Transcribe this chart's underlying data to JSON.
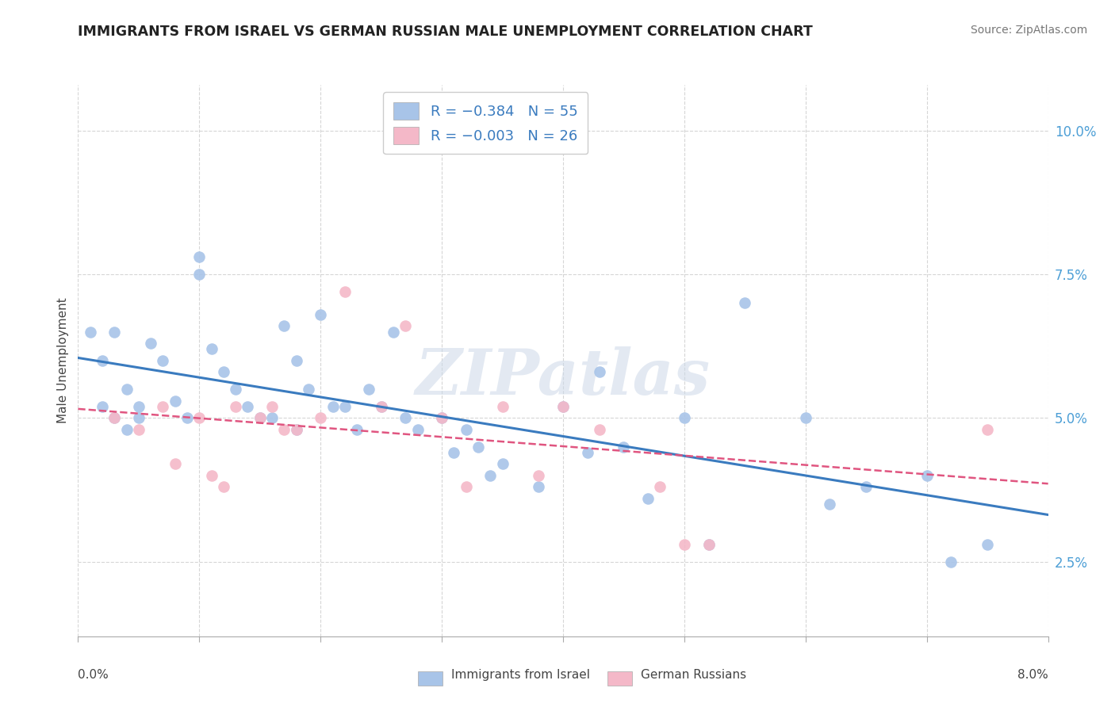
{
  "title": "IMMIGRANTS FROM ISRAEL VS GERMAN RUSSIAN MALE UNEMPLOYMENT CORRELATION CHART",
  "source": "Source: ZipAtlas.com",
  "ylabel": "Male Unemployment",
  "ytick_vals": [
    0.025,
    0.05,
    0.075,
    0.1
  ],
  "ytick_labels": [
    "2.5%",
    "5.0%",
    "7.5%",
    "10.0%"
  ],
  "xlim": [
    0.0,
    0.08
  ],
  "ylim": [
    0.012,
    0.108
  ],
  "color_israel": "#a8c4e8",
  "color_german": "#f4b8c8",
  "color_line_israel": "#3a7bbf",
  "color_line_german": "#e05580",
  "color_ytick": "#4d9fd6",
  "watermark": "ZIPatlas",
  "israel_x": [
    0.001,
    0.002,
    0.002,
    0.003,
    0.003,
    0.004,
    0.004,
    0.005,
    0.005,
    0.006,
    0.007,
    0.008,
    0.009,
    0.01,
    0.01,
    0.011,
    0.012,
    0.013,
    0.014,
    0.015,
    0.016,
    0.017,
    0.018,
    0.018,
    0.019,
    0.02,
    0.021,
    0.022,
    0.023,
    0.024,
    0.025,
    0.026,
    0.027,
    0.028,
    0.03,
    0.031,
    0.032,
    0.033,
    0.034,
    0.035,
    0.038,
    0.04,
    0.042,
    0.043,
    0.045,
    0.047,
    0.05,
    0.052,
    0.055,
    0.06,
    0.062,
    0.065,
    0.07,
    0.072,
    0.075
  ],
  "israel_y": [
    0.065,
    0.06,
    0.052,
    0.065,
    0.05,
    0.055,
    0.048,
    0.05,
    0.052,
    0.063,
    0.06,
    0.053,
    0.05,
    0.075,
    0.078,
    0.062,
    0.058,
    0.055,
    0.052,
    0.05,
    0.05,
    0.066,
    0.06,
    0.048,
    0.055,
    0.068,
    0.052,
    0.052,
    0.048,
    0.055,
    0.052,
    0.065,
    0.05,
    0.048,
    0.05,
    0.044,
    0.048,
    0.045,
    0.04,
    0.042,
    0.038,
    0.052,
    0.044,
    0.058,
    0.045,
    0.036,
    0.05,
    0.028,
    0.07,
    0.05,
    0.035,
    0.038,
    0.04,
    0.025,
    0.028
  ],
  "german_x": [
    0.003,
    0.005,
    0.007,
    0.008,
    0.01,
    0.011,
    0.012,
    0.013,
    0.015,
    0.016,
    0.017,
    0.018,
    0.02,
    0.022,
    0.025,
    0.027,
    0.03,
    0.032,
    0.035,
    0.038,
    0.04,
    0.043,
    0.048,
    0.05,
    0.052,
    0.075
  ],
  "german_y": [
    0.05,
    0.048,
    0.052,
    0.042,
    0.05,
    0.04,
    0.038,
    0.052,
    0.05,
    0.052,
    0.048,
    0.048,
    0.05,
    0.072,
    0.052,
    0.066,
    0.05,
    0.038,
    0.052,
    0.04,
    0.052,
    0.048,
    0.038,
    0.028,
    0.028,
    0.048
  ]
}
